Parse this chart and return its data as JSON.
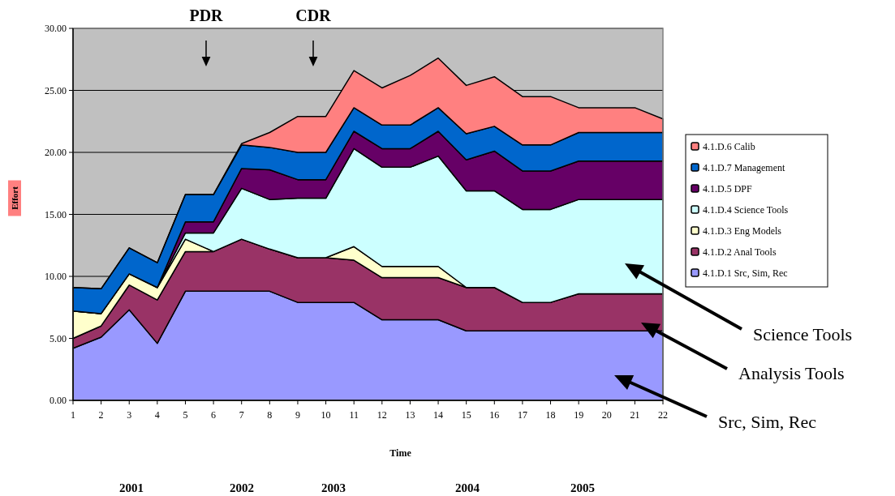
{
  "chart_data": {
    "type": "area",
    "stacked": true,
    "xlabel": "Time",
    "ylabel": "Effort",
    "x": [
      1,
      2,
      3,
      4,
      5,
      6,
      7,
      8,
      9,
      10,
      11,
      12,
      13,
      14,
      15,
      16,
      17,
      18,
      19,
      20,
      21,
      22
    ],
    "xlim": [
      1,
      22
    ],
    "xticks": [
      1,
      2,
      3,
      4,
      5,
      6,
      7,
      8,
      9,
      10,
      11,
      12,
      13,
      14,
      15,
      16,
      17,
      18,
      19,
      20,
      21,
      22
    ],
    "ylim": [
      0,
      30
    ],
    "yticks": [
      {
        "value": 0,
        "label": "0.00"
      },
      {
        "value": 5,
        "label": "5.00"
      },
      {
        "value": 10,
        "label": "10.00"
      },
      {
        "value": 15,
        "label": "15.00"
      },
      {
        "value": 20,
        "label": "20.00"
      },
      {
        "value": 25,
        "label": "25.00"
      },
      {
        "value": 30,
        "label": "30.00"
      }
    ],
    "grid": "y",
    "legend": "right",
    "series": [
      {
        "name": "4.1.D.1 Src, Sim, Rec",
        "color": "#9999ff",
        "values": [
          4.2,
          5.1,
          7.3,
          4.6,
          8.8,
          8.8,
          8.8,
          8.8,
          7.9,
          7.9,
          7.9,
          6.5,
          6.5,
          6.5,
          5.6,
          5.6,
          5.6,
          5.6,
          5.6,
          5.6,
          5.6,
          5.6
        ]
      },
      {
        "name": "4.1.D.2 Anal Tools",
        "color": "#993366",
        "values": [
          0.8,
          0.9,
          2.0,
          3.5,
          3.2,
          3.2,
          4.2,
          3.4,
          3.6,
          3.6,
          3.4,
          3.4,
          3.4,
          3.4,
          3.5,
          3.5,
          2.3,
          2.3,
          3.0,
          3.0,
          3.0,
          3.0
        ]
      },
      {
        "name": "4.1.D.3 Eng Models",
        "color": "#ffffcc",
        "values": [
          2.2,
          1.0,
          0.9,
          1.0,
          1.0,
          0,
          0,
          0,
          0,
          0,
          1.1,
          0.9,
          0.9,
          0.9,
          0,
          0,
          0,
          0,
          0,
          0,
          0,
          0
        ]
      },
      {
        "name": "4.1.D.4 Science Tools",
        "color": "#ccffff",
        "values": [
          0,
          0,
          0,
          0,
          0.5,
          1.5,
          4.1,
          4.0,
          4.8,
          4.8,
          7.9,
          8.0,
          8.0,
          8.9,
          7.8,
          7.8,
          7.5,
          7.5,
          7.6,
          7.6,
          7.6,
          7.6
        ]
      },
      {
        "name": "4.1.D.5 DPF",
        "color": "#660066",
        "values": [
          0,
          0,
          0,
          0,
          0.9,
          0.9,
          1.6,
          2.4,
          1.5,
          1.5,
          1.4,
          1.5,
          1.5,
          2.0,
          2.5,
          3.2,
          3.1,
          3.1,
          3.1,
          3.1,
          3.1,
          3.1
        ]
      },
      {
        "name": "4.1.D.7 Management",
        "color": "#0066cc",
        "values": [
          1.9,
          2.0,
          2.1,
          2.0,
          2.2,
          2.2,
          1.9,
          1.8,
          2.2,
          2.2,
          1.9,
          1.9,
          1.9,
          1.9,
          2.1,
          2.0,
          2.1,
          2.1,
          2.3,
          2.3,
          2.3,
          2.3
        ]
      },
      {
        "name": "4.1.D.6 Calib",
        "color": "#ff8080",
        "values": [
          0,
          0,
          0,
          0,
          0,
          0,
          0.1,
          1.2,
          2.9,
          2.9,
          3.0,
          3.0,
          4.0,
          4.0,
          3.9,
          4.0,
          3.9,
          3.9,
          2.0,
          2.0,
          2.0,
          1.1
        ]
      }
    ],
    "annotations": [
      "PDR",
      "CDR",
      "Science Tools",
      "Analysis Tools",
      "Src, Sim, Rec",
      "2001",
      "2002",
      "2003",
      "2004",
      "2005"
    ]
  }
}
